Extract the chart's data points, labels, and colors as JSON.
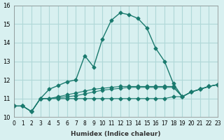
{
  "xlabel": "Humidex (Indice chaleur)",
  "ylabel": "",
  "bg_color": "#d8f0f0",
  "grid_color": "#b0d8d8",
  "line_color": "#1a7a6e",
  "xlim": [
    0,
    23
  ],
  "ylim": [
    10,
    16
  ],
  "yticks": [
    10,
    11,
    12,
    13,
    14,
    15,
    16
  ],
  "xticks": [
    0,
    1,
    2,
    3,
    4,
    5,
    6,
    7,
    8,
    9,
    10,
    11,
    12,
    13,
    14,
    15,
    16,
    17,
    18,
    19,
    20,
    21,
    22,
    23
  ],
  "series": [
    {
      "x": [
        0,
        1,
        2,
        3,
        4,
        5,
        6,
        7,
        8,
        9,
        10,
        11,
        12,
        13,
        14,
        15,
        16,
        17,
        18,
        19,
        20,
        21,
        22,
        23
      ],
      "y": [
        10.6,
        10.6,
        10.3,
        11.0,
        11.5,
        11.7,
        11.9,
        12.0,
        13.3,
        12.7,
        14.2,
        15.2,
        15.6,
        15.5,
        15.3,
        14.8,
        13.7,
        13.0,
        11.8,
        11.1,
        11.35,
        11.5,
        11.65,
        11.75
      ]
    },
    {
      "x": [
        0,
        1,
        2,
        3,
        4,
        5,
        6,
        7,
        8,
        9,
        10,
        11,
        12,
        13,
        14,
        15,
        16,
        17,
        18,
        19,
        20,
        21,
        22,
        23
      ],
      "y": [
        10.6,
        10.6,
        10.3,
        11.0,
        11.0,
        11.0,
        11.0,
        11.0,
        11.0,
        11.0,
        11.0,
        11.0,
        11.0,
        11.0,
        11.0,
        11.0,
        11.0,
        11.0,
        11.1,
        11.1,
        11.35,
        11.5,
        11.65,
        11.75
      ]
    },
    {
      "x": [
        0,
        1,
        2,
        3,
        4,
        5,
        6,
        7,
        8,
        9,
        10,
        11,
        12,
        13,
        14,
        15,
        16,
        17,
        18,
        19,
        20,
        21,
        22,
        23
      ],
      "y": [
        10.6,
        10.6,
        10.3,
        11.0,
        11.0,
        11.1,
        11.2,
        11.3,
        11.4,
        11.5,
        11.55,
        11.6,
        11.65,
        11.65,
        11.65,
        11.65,
        11.65,
        11.65,
        11.65,
        11.1,
        11.35,
        11.5,
        11.65,
        11.75
      ]
    },
    {
      "x": [
        0,
        1,
        2,
        3,
        4,
        5,
        6,
        7,
        8,
        9,
        10,
        11,
        12,
        13,
        14,
        15,
        16,
        17,
        18,
        19,
        20,
        21,
        22,
        23
      ],
      "y": [
        10.6,
        10.6,
        10.3,
        11.0,
        11.0,
        11.05,
        11.1,
        11.15,
        11.25,
        11.35,
        11.45,
        11.5,
        11.55,
        11.6,
        11.6,
        11.6,
        11.6,
        11.6,
        11.6,
        11.1,
        11.35,
        11.5,
        11.65,
        11.75
      ]
    }
  ]
}
